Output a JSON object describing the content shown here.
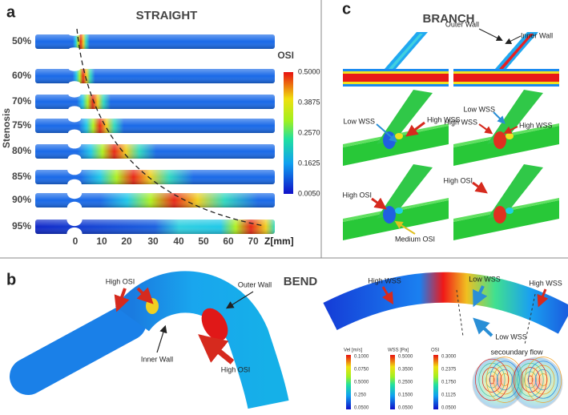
{
  "panel_a": {
    "label": "a",
    "title": "STRAIGHT",
    "y_axis_label": "Stenosis",
    "rows": [
      "50%",
      "60%",
      "70%",
      "75%",
      "80%",
      "85%",
      "90%",
      "95%"
    ],
    "x_ticks": [
      "0",
      "10",
      "20",
      "30",
      "40",
      "50",
      "60",
      "70"
    ],
    "x_unit": "Z[mm]",
    "colorbar": {
      "title": "OSI",
      "ticks": [
        "0.5000",
        "0.3875",
        "0.2570",
        "0.1625",
        "0.0050"
      ]
    }
  },
  "panel_c": {
    "label": "c",
    "title": "BRANCH",
    "annotations": [
      "Outer Wall",
      "Inner Wall",
      "Low WSS",
      "High WSS",
      "Low WSS",
      "High WSS",
      "High WSS",
      "High OSI",
      "Medium OSI",
      "High OSI"
    ]
  },
  "panel_b": {
    "label": "b",
    "title": "BEND",
    "annotations": [
      "High OSI",
      "Outer Wall",
      "Inner Wall",
      "High OSI",
      "High WSS",
      "Low WSS",
      "High WSS",
      "Low WSS"
    ],
    "caption": "secoundary flow",
    "legends": [
      {
        "title": "Vel [m/s]",
        "ticks": [
          "0.1000",
          "0.0750",
          "0.5000",
          "0.250",
          "0.0500"
        ]
      },
      {
        "title": "WSS [Pa]",
        "ticks": [
          "0.5000",
          "0.3500",
          "0.2500",
          "0.1500",
          "0.0500"
        ]
      },
      {
        "title": "OSI",
        "ticks": [
          "0.3000",
          "0.2375",
          "0.1750",
          "0.1125",
          "0.0500"
        ]
      }
    ]
  }
}
